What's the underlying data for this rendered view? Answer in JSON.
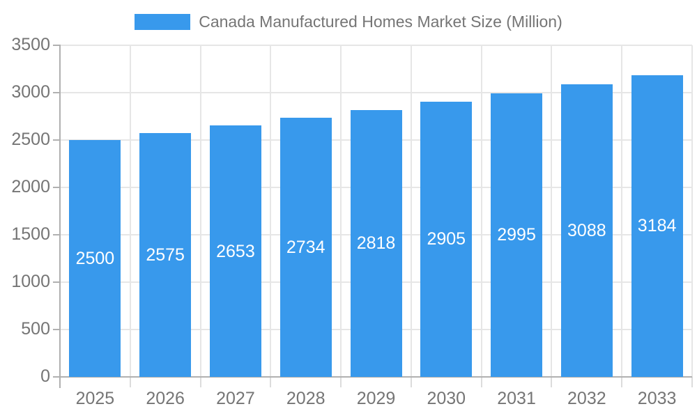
{
  "chart_data": {
    "type": "bar",
    "title": "Canada Manufactured Homes Market Size (Million)",
    "categories": [
      "2025",
      "2026",
      "2027",
      "2028",
      "2029",
      "2030",
      "2031",
      "2032",
      "2033"
    ],
    "series": [
      {
        "name": "Canada Manufactured Homes Market Size (Million)",
        "values": [
          2500,
          2575,
          2653,
          2734,
          2818,
          2905,
          2995,
          3088,
          3184
        ]
      }
    ],
    "xlabel": "",
    "ylabel": "",
    "ylim": [
      0,
      3500
    ],
    "yticks": [
      0,
      500,
      1000,
      1500,
      2000,
      2500,
      3000,
      3500
    ],
    "grid": true,
    "bar_value_labels_shown": true,
    "legend_position": "top-center",
    "colors": {
      "bar": "#3899EC",
      "bar_label": "#FFFFFF",
      "axis_text": "#757575",
      "grid": "#E6E6E6",
      "axis_line": "#B0B0B0",
      "x_tick": "#DCDCDC"
    }
  }
}
